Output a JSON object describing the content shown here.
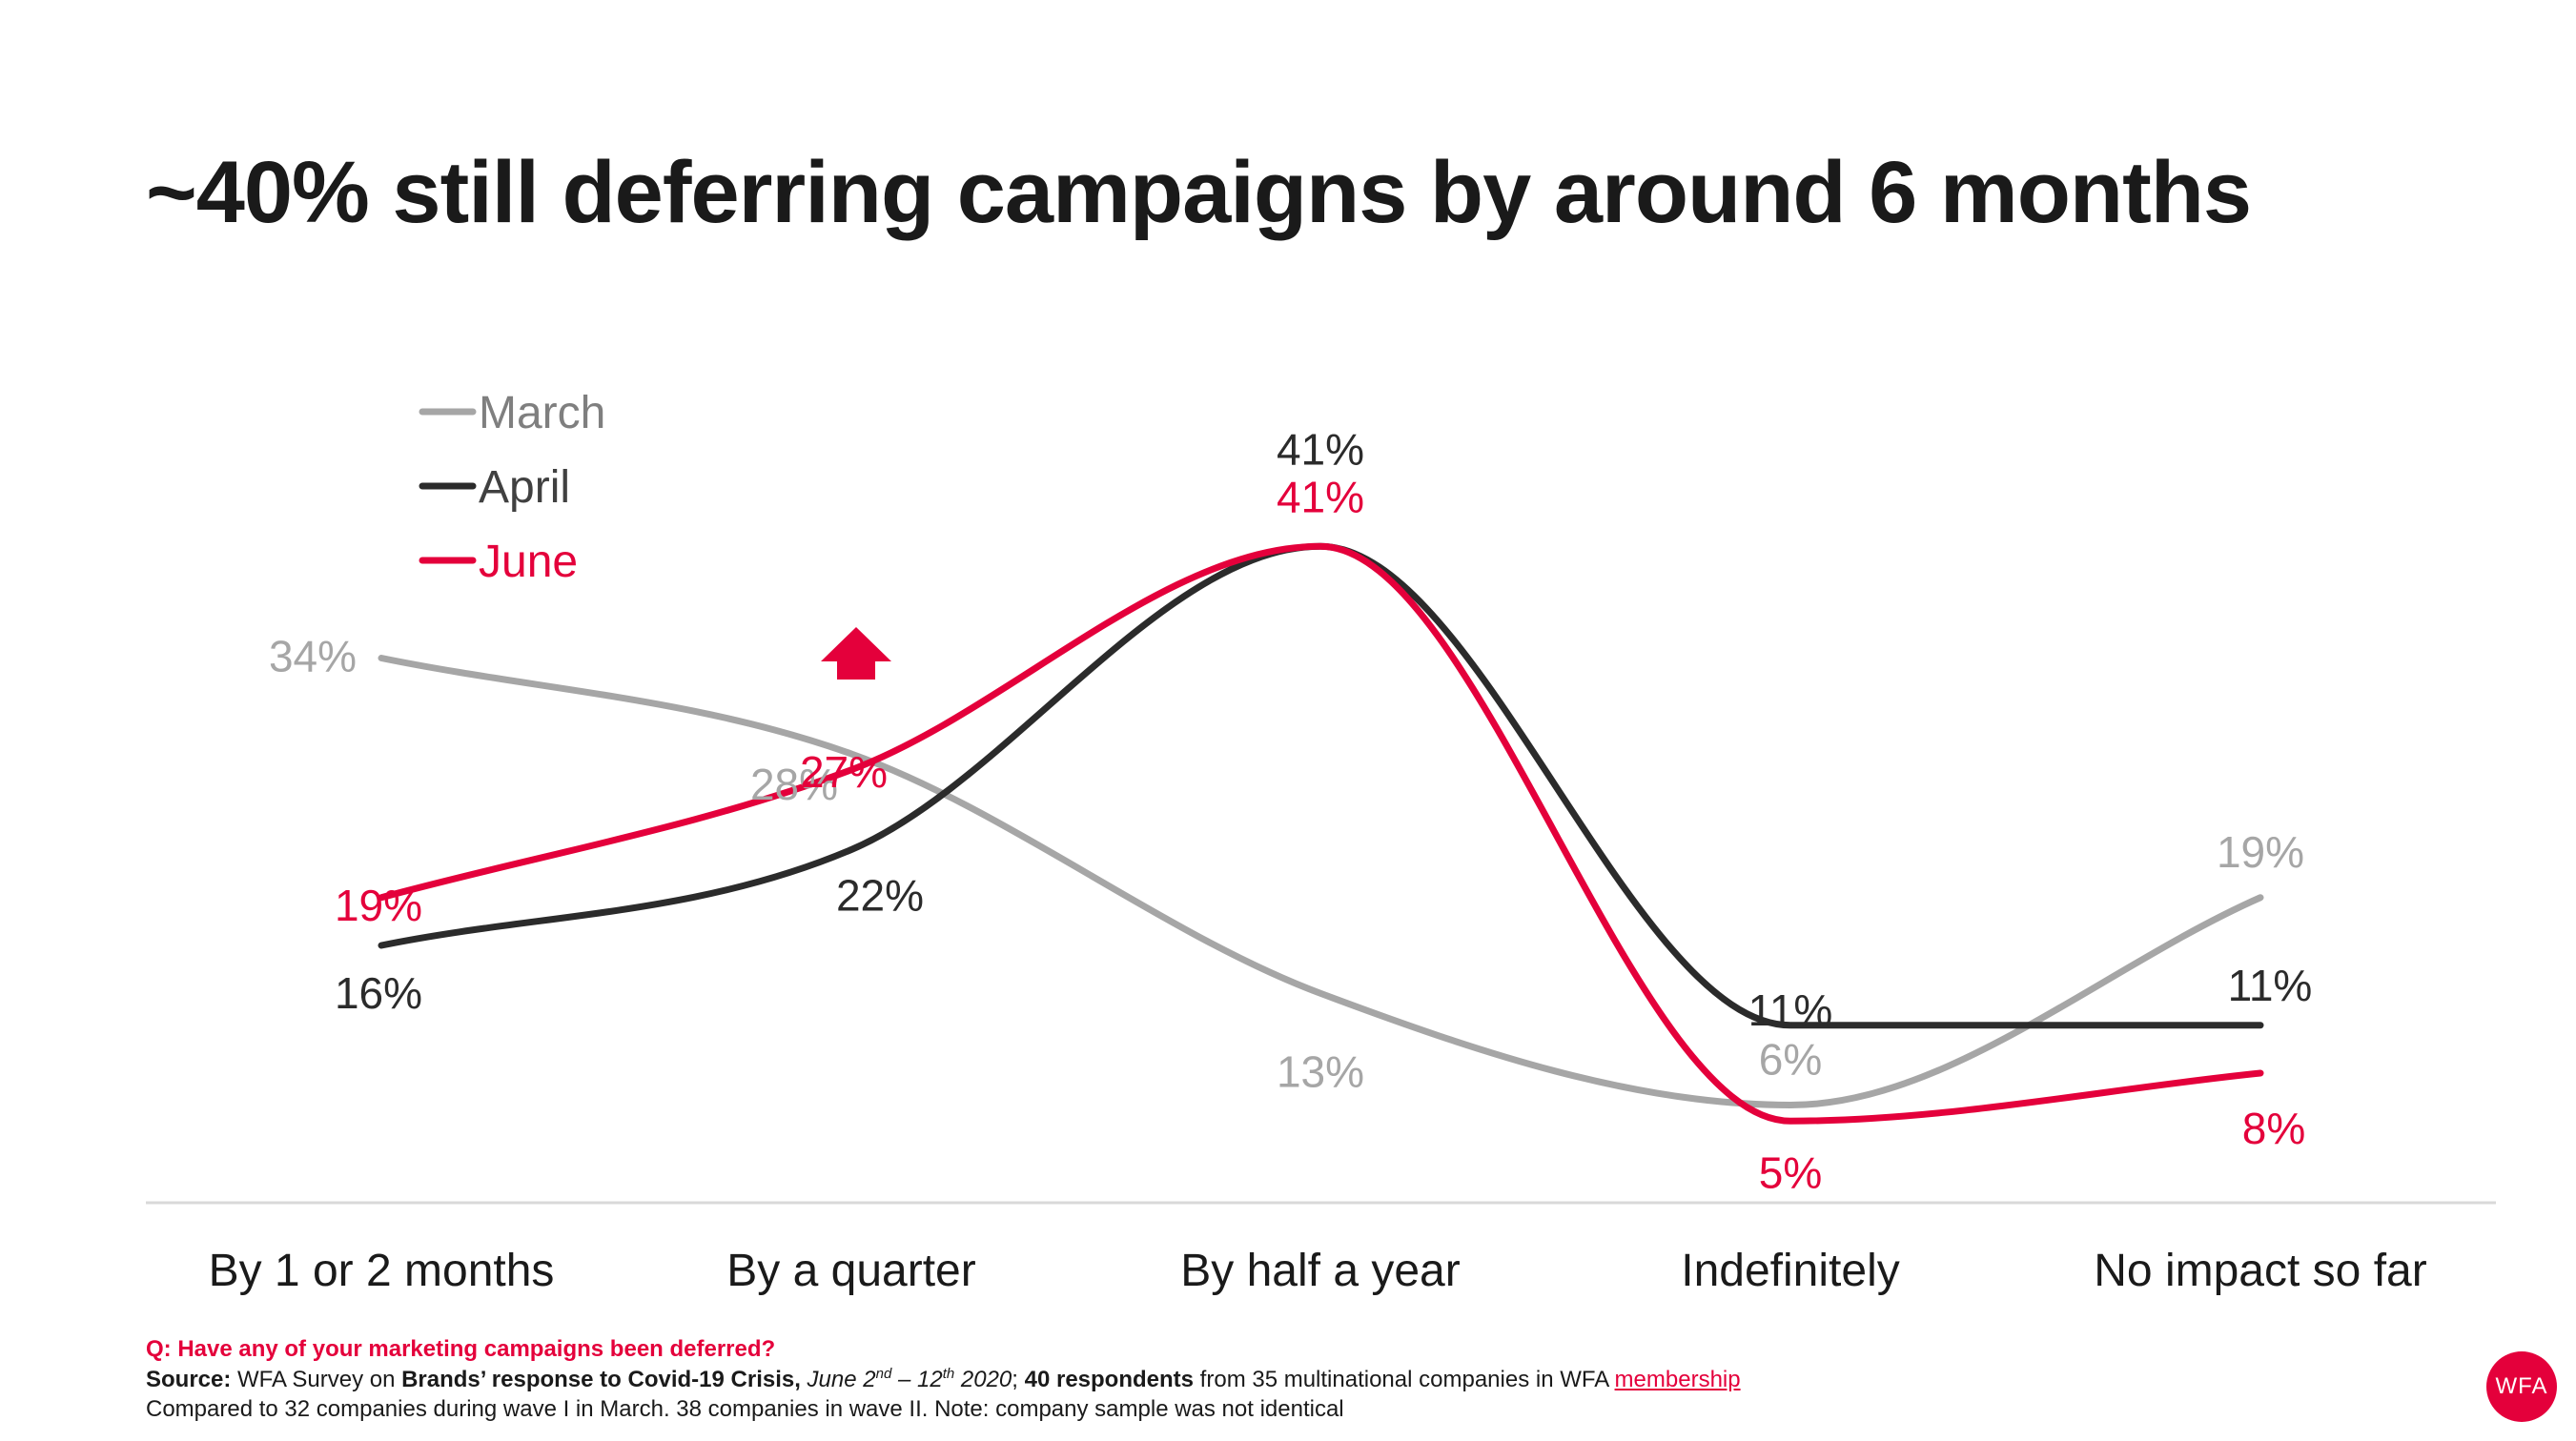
{
  "title": "~40% still deferring campaigns by around 6 months",
  "footnotes": {
    "question": "Q: Have any of your marketing campaigns been deferred?",
    "source_label": "Source:",
    "source_text1": " WFA Survey on ",
    "source_bold1": "Brands’ response to Covid-19 Crisis,",
    "source_date_a": " June 2",
    "source_sup_a": "nd",
    "source_date_b": " – 12",
    "source_sup_b": "th",
    "source_date_c": " 2020",
    "source_text2": "; ",
    "source_bold2": "40 respondents",
    "source_text3": " from 35 multinational companies in WFA ",
    "source_link": "membership",
    "compare": "Compared to 32 companies during wave I in March. 38 companies in wave II. Note: company sample was not identical"
  },
  "logo": "WFA",
  "colors": {
    "march": "#a6a6a6",
    "april": "#2b2b2b",
    "june": "#e4003b",
    "axis": "#d9d9d9"
  },
  "chart_data": {
    "type": "line",
    "categories": [
      "By 1 or 2 months",
      "By a quarter",
      "By half a year",
      "Indefinitely",
      "No impact so far"
    ],
    "series": [
      {
        "name": "March",
        "values": [
          34,
          28,
          13,
          6,
          19
        ],
        "labels": [
          "34%",
          "28%",
          "13%",
          "6%",
          "19%"
        ]
      },
      {
        "name": "April",
        "values": [
          16,
          22,
          41,
          11,
          11
        ],
        "labels": [
          "16%",
          "22%",
          "41%",
          "11%",
          "11%"
        ]
      },
      {
        "name": "June",
        "values": [
          19,
          27,
          41,
          5,
          8
        ],
        "labels": [
          "19%",
          "27%",
          "41%",
          "5%",
          "8%"
        ]
      }
    ],
    "legend": "top-left",
    "annotation": "up-arrow-icon above By a quarter (June increase)",
    "ylim": [
      0,
      50
    ],
    "grid": false
  }
}
